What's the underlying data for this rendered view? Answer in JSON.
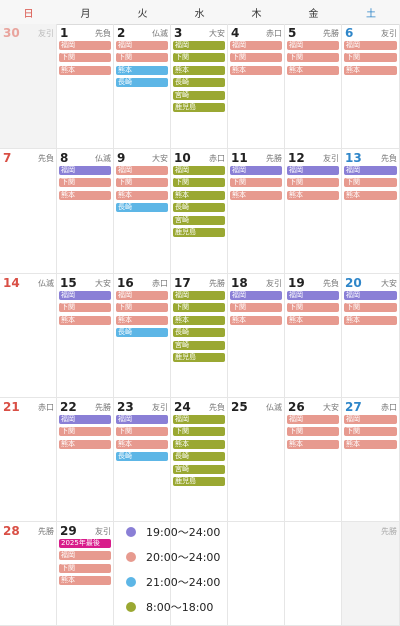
{
  "colors": {
    "purple": "#8a7fd6",
    "salmon": "#e79a8f",
    "blue": "#5db6e6",
    "olive": "#9aa832",
    "special": "#d81b8a",
    "red": "#d94f45",
    "sat_blue": "#2f86c9"
  },
  "weekdays": [
    "日",
    "月",
    "火",
    "水",
    "木",
    "金",
    "土"
  ],
  "weeks": [
    [
      {
        "day": "30",
        "rokuyo": "友引",
        "other": true,
        "events": []
      },
      {
        "day": "1",
        "rokuyo": "先負",
        "events": [
          {
            "t": "福岡",
            "c": "salmon"
          },
          {
            "t": "下関",
            "c": "salmon"
          },
          {
            "t": "熊本",
            "c": "salmon"
          }
        ]
      },
      {
        "day": "2",
        "rokuyo": "仏滅",
        "events": [
          {
            "t": "福岡",
            "c": "salmon"
          },
          {
            "t": "下関",
            "c": "salmon"
          },
          {
            "t": "熊本",
            "c": "blue"
          },
          {
            "t": "長崎",
            "c": "blue"
          }
        ]
      },
      {
        "day": "3",
        "rokuyo": "大安",
        "events": [
          {
            "t": "福岡",
            "c": "olive"
          },
          {
            "t": "下関",
            "c": "olive"
          },
          {
            "t": "熊本",
            "c": "olive"
          },
          {
            "t": "長崎",
            "c": "olive"
          },
          {
            "t": "宮崎",
            "c": "olive"
          },
          {
            "t": "鹿児島",
            "c": "olive"
          }
        ]
      },
      {
        "day": "4",
        "rokuyo": "赤口",
        "events": [
          {
            "t": "福岡",
            "c": "salmon"
          },
          {
            "t": "下関",
            "c": "salmon"
          },
          {
            "t": "熊本",
            "c": "salmon"
          }
        ]
      },
      {
        "day": "5",
        "rokuyo": "先勝",
        "events": [
          {
            "t": "福岡",
            "c": "salmon"
          },
          {
            "t": "下関",
            "c": "salmon"
          },
          {
            "t": "熊本",
            "c": "salmon"
          }
        ]
      },
      {
        "day": "6",
        "rokuyo": "友引",
        "events": [
          {
            "t": "福岡",
            "c": "salmon"
          },
          {
            "t": "下関",
            "c": "salmon"
          },
          {
            "t": "熊本",
            "c": "salmon"
          }
        ]
      }
    ],
    [
      {
        "day": "7",
        "rokuyo": "先負",
        "events": []
      },
      {
        "day": "8",
        "rokuyo": "仏滅",
        "events": [
          {
            "t": "福岡",
            "c": "purple"
          },
          {
            "t": "下関",
            "c": "salmon"
          },
          {
            "t": "熊本",
            "c": "salmon"
          }
        ]
      },
      {
        "day": "9",
        "rokuyo": "大安",
        "events": [
          {
            "t": "福岡",
            "c": "salmon"
          },
          {
            "t": "下関",
            "c": "salmon"
          },
          {
            "t": "熊本",
            "c": "salmon"
          },
          {
            "t": "長崎",
            "c": "blue"
          }
        ]
      },
      {
        "day": "10",
        "rokuyo": "赤口",
        "events": [
          {
            "t": "福岡",
            "c": "olive"
          },
          {
            "t": "下関",
            "c": "olive"
          },
          {
            "t": "熊本",
            "c": "olive"
          },
          {
            "t": "長崎",
            "c": "olive"
          },
          {
            "t": "宮崎",
            "c": "olive"
          },
          {
            "t": "鹿児島",
            "c": "olive"
          }
        ]
      },
      {
        "day": "11",
        "rokuyo": "先勝",
        "events": [
          {
            "t": "福岡",
            "c": "purple"
          },
          {
            "t": "下関",
            "c": "salmon"
          },
          {
            "t": "熊本",
            "c": "salmon"
          }
        ]
      },
      {
        "day": "12",
        "rokuyo": "友引",
        "events": [
          {
            "t": "福岡",
            "c": "purple"
          },
          {
            "t": "下関",
            "c": "salmon"
          },
          {
            "t": "熊本",
            "c": "salmon"
          }
        ]
      },
      {
        "day": "13",
        "rokuyo": "先負",
        "events": [
          {
            "t": "福岡",
            "c": "purple"
          },
          {
            "t": "下関",
            "c": "salmon"
          },
          {
            "t": "熊本",
            "c": "salmon"
          }
        ]
      }
    ],
    [
      {
        "day": "14",
        "rokuyo": "仏滅",
        "events": []
      },
      {
        "day": "15",
        "rokuyo": "大安",
        "events": [
          {
            "t": "福岡",
            "c": "purple"
          },
          {
            "t": "下関",
            "c": "salmon"
          },
          {
            "t": "熊本",
            "c": "salmon"
          }
        ]
      },
      {
        "day": "16",
        "rokuyo": "赤口",
        "events": [
          {
            "t": "福岡",
            "c": "salmon"
          },
          {
            "t": "下関",
            "c": "salmon"
          },
          {
            "t": "熊本",
            "c": "salmon"
          },
          {
            "t": "長崎",
            "c": "blue"
          }
        ]
      },
      {
        "day": "17",
        "rokuyo": "先勝",
        "events": [
          {
            "t": "福岡",
            "c": "olive"
          },
          {
            "t": "下関",
            "c": "olive"
          },
          {
            "t": "熊本",
            "c": "olive"
          },
          {
            "t": "長崎",
            "c": "olive"
          },
          {
            "t": "宮崎",
            "c": "olive"
          },
          {
            "t": "鹿児島",
            "c": "olive"
          }
        ]
      },
      {
        "day": "18",
        "rokuyo": "友引",
        "events": [
          {
            "t": "福岡",
            "c": "purple"
          },
          {
            "t": "下関",
            "c": "salmon"
          },
          {
            "t": "熊本",
            "c": "salmon"
          }
        ]
      },
      {
        "day": "19",
        "rokuyo": "先負",
        "events": [
          {
            "t": "福岡",
            "c": "purple"
          },
          {
            "t": "下関",
            "c": "salmon"
          },
          {
            "t": "熊本",
            "c": "salmon"
          }
        ]
      },
      {
        "day": "20",
        "rokuyo": "大安",
        "events": [
          {
            "t": "福岡",
            "c": "purple"
          },
          {
            "t": "下関",
            "c": "salmon"
          },
          {
            "t": "熊本",
            "c": "salmon"
          }
        ]
      }
    ],
    [
      {
        "day": "21",
        "rokuyo": "赤口",
        "events": []
      },
      {
        "day": "22",
        "rokuyo": "先勝",
        "events": [
          {
            "t": "福岡",
            "c": "purple"
          },
          {
            "t": "下関",
            "c": "salmon"
          },
          {
            "t": "熊本",
            "c": "salmon"
          }
        ]
      },
      {
        "day": "23",
        "rokuyo": "友引",
        "events": [
          {
            "t": "福岡",
            "c": "purple"
          },
          {
            "t": "下関",
            "c": "salmon"
          },
          {
            "t": "熊本",
            "c": "salmon"
          },
          {
            "t": "長崎",
            "c": "blue"
          }
        ]
      },
      {
        "day": "24",
        "rokuyo": "先負",
        "events": [
          {
            "t": "福岡",
            "c": "olive"
          },
          {
            "t": "下関",
            "c": "olive"
          },
          {
            "t": "熊本",
            "c": "olive"
          },
          {
            "t": "長崎",
            "c": "olive"
          },
          {
            "t": "宮崎",
            "c": "olive"
          },
          {
            "t": "鹿児島",
            "c": "olive"
          }
        ]
      },
      {
        "day": "25",
        "rokuyo": "仏滅",
        "events": []
      },
      {
        "day": "26",
        "rokuyo": "大安",
        "events": [
          {
            "t": "福岡",
            "c": "salmon"
          },
          {
            "t": "下関",
            "c": "salmon"
          },
          {
            "t": "熊本",
            "c": "salmon"
          }
        ]
      },
      {
        "day": "27",
        "rokuyo": "赤口",
        "events": [
          {
            "t": "福岡",
            "c": "salmon"
          },
          {
            "t": "下関",
            "c": "salmon"
          },
          {
            "t": "熊本",
            "c": "salmon"
          }
        ]
      }
    ],
    [
      {
        "day": "28",
        "rokuyo": "先勝",
        "events": []
      },
      {
        "day": "29",
        "rokuyo": "友引",
        "events": [
          {
            "t": "2025年最後",
            "c": "special"
          },
          {
            "t": "福岡",
            "c": "salmon"
          },
          {
            "t": "下関",
            "c": "salmon"
          },
          {
            "t": "熊本",
            "c": "salmon"
          }
        ]
      },
      {
        "day": "",
        "rokuyo": "",
        "events": []
      },
      {
        "day": "",
        "rokuyo": "",
        "events": []
      },
      {
        "day": "",
        "rokuyo": "",
        "events": []
      },
      {
        "day": "",
        "rokuyo": "",
        "events": []
      },
      {
        "day": "",
        "rokuyo": "先勝",
        "shade": true,
        "events": []
      }
    ]
  ],
  "legend": [
    {
      "color": "purple",
      "text": "19:00～24:00"
    },
    {
      "color": "salmon",
      "text": "20:00～24:00"
    },
    {
      "color": "blue",
      "text": "21:00～24:00"
    },
    {
      "color": "olive",
      "text": "8:00～18:00"
    }
  ]
}
